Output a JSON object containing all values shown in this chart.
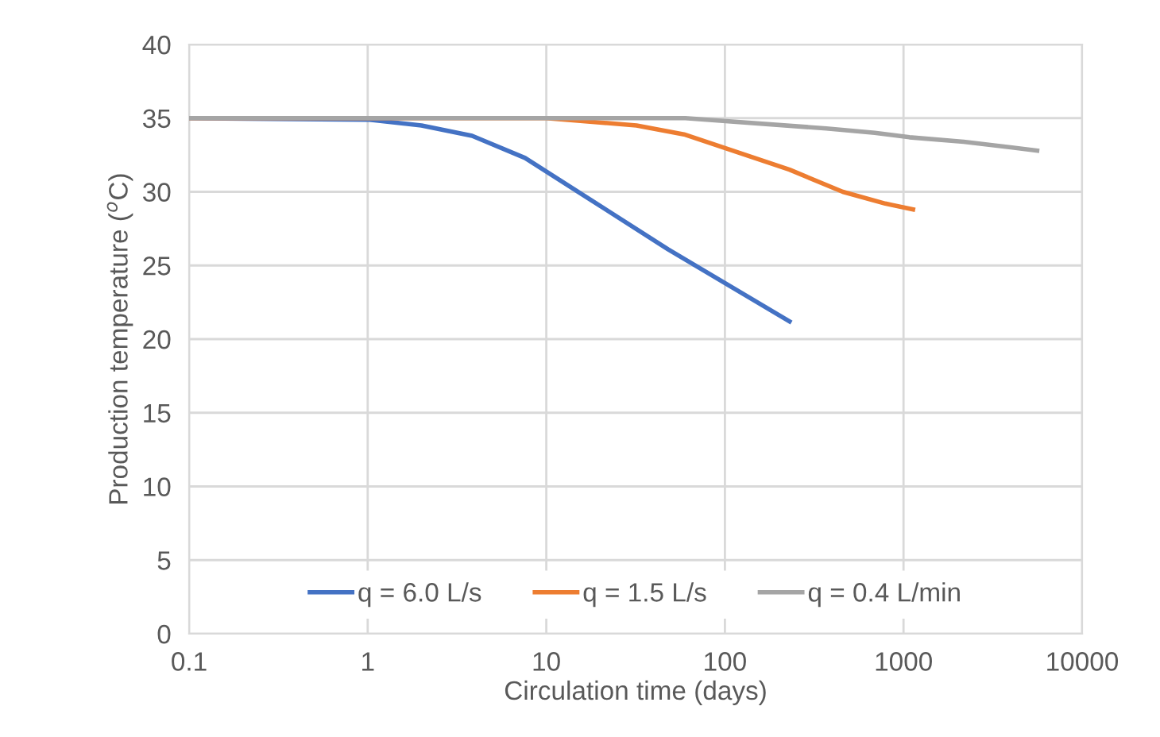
{
  "chart_data": {
    "type": "line",
    "xlabel": "Circulation time (days)",
    "ylabel": "Production temperature ($^{o}$C)",
    "log": "x",
    "xlim": [
      0.1,
      10000
    ],
    "xticks": [
      0.1,
      1,
      10,
      100,
      1000,
      10000
    ],
    "ylim": [
      0,
      40
    ],
    "yticks": [
      0,
      5,
      10,
      15,
      20,
      25,
      30,
      35,
      40
    ],
    "grid": true,
    "legend": "bottom",
    "marker": "none",
    "line_style": "solid",
    "series": [
      {
        "name": "q = 6.0 L/s",
        "color": "#4472c4",
        "x": [
          0.1,
          1,
          2,
          3.84,
          7.6,
          48,
          230
        ],
        "values": [
          35,
          34.9,
          34.5,
          33.8,
          32.3,
          26.1,
          21.2
        ]
      },
      {
        "name": "q = 1.5 L/s",
        "color": "#ed7d31",
        "x": [
          0.1,
          1,
          10,
          32,
          59,
          230,
          457,
          790,
          1130
        ],
        "values": [
          35,
          35,
          35,
          34.5,
          33.9,
          31.5,
          30.0,
          29.2,
          28.8
        ]
      },
      {
        "name": "q = 0.4 L/min",
        "color": "#a5a5a5",
        "x": [
          0.1,
          1,
          10,
          60,
          370,
          690,
          1080,
          2170,
          5600
        ],
        "values": [
          35,
          35,
          35,
          35.0,
          34.3,
          34.0,
          33.7,
          33.4,
          32.8
        ]
      }
    ]
  }
}
